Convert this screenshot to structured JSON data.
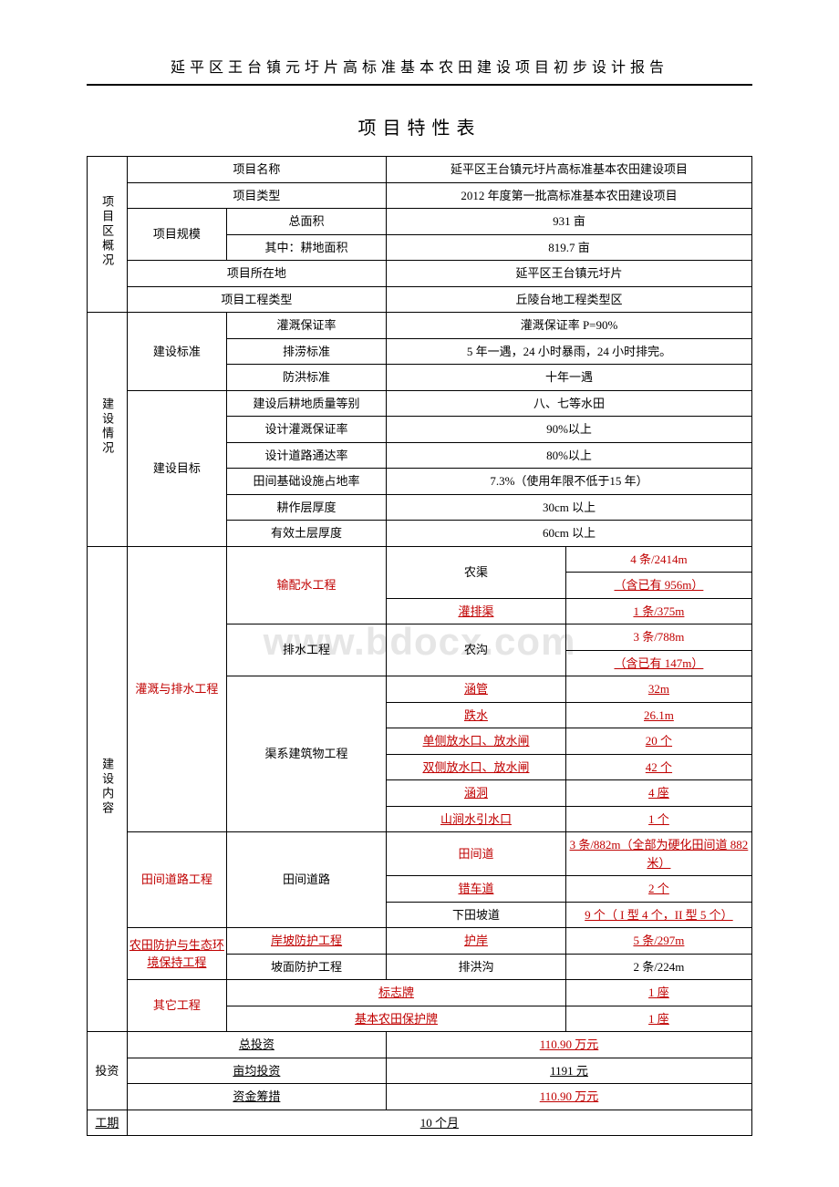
{
  "header": "延平区王台镇元圩片高标准基本农田建设项目初步设计报告",
  "title": "项目特性表",
  "watermark": "www.bdocx.com",
  "sections": {
    "overview": {
      "label": "项目区概况",
      "project_name_label": "项目名称",
      "project_name_value": "延平区王台镇元圩片高标准基本农田建设项目",
      "project_type_label": "项目类型",
      "project_type_value": "2012 年度第一批高标准基本农田建设项目",
      "project_scale_label": "项目规模",
      "total_area_label": "总面积",
      "total_area_value": "931 亩",
      "farmland_area_label": "其中：耕地面积",
      "farmland_area_value": "819.7 亩",
      "location_label": "项目所在地",
      "location_value": "延平区王台镇元圩片",
      "eng_type_label": "项目工程类型",
      "eng_type_value": "丘陵台地工程类型区"
    },
    "construction": {
      "label": "建设情况",
      "standard_label": "建设标准",
      "irrigation_rate_label": "灌溉保证率",
      "irrigation_rate_value": "灌溉保证率 P=90%",
      "drainage_std_label": "排涝标准",
      "drainage_std_value": "5 年一遇，24 小时暴雨，24 小时排完。",
      "flood_std_label": "防洪标准",
      "flood_std_value": "十年一遇",
      "goal_label": "建设目标",
      "quality_label": "建设后耕地质量等别",
      "quality_value": "八、七等水田",
      "design_irrigation_label": "设计灌溉保证率",
      "design_irrigation_value": "90%以上",
      "road_access_label": "设计道路通达率",
      "road_access_value": "80%以上",
      "field_infra_label": "田间基础设施占地率",
      "field_infra_value": "7.3%（使用年限不低于15 年）",
      "tillage_label": "耕作层厚度",
      "tillage_value": "30cm 以上",
      "soil_label": "有效土层厚度",
      "soil_value": "60cm 以上"
    },
    "content": {
      "label": "建设内容",
      "irrigation_drainage_label": "灌溉与排水工程",
      "water_supply_label": "输配水工程",
      "nongqu_label": "农渠",
      "nongqu_value_1": "4 条/2414m",
      "nongqu_value_2": "（含已有 956m）",
      "guanpaiju_label": "灌排渠",
      "guanpaiju_value": "1 条/375m",
      "drainage_eng_label": "排水工程",
      "nonggou_label": "农沟",
      "nonggou_value_1": "3 条/788m",
      "nonggou_value_2": "（含已有 147m）",
      "channel_struct_label": "渠系建筑物工程",
      "hangguan_label": "涵管",
      "hangguan_value": "32m",
      "dieshui_label": "跌水",
      "dieshui_value": "26.1m",
      "single_gate_label": "单侧放水口、放水闸",
      "single_gate_value": "20 个",
      "double_gate_label": "双侧放水口、放水闸",
      "double_gate_value": "42 个",
      "handong_label": "涵洞",
      "handong_value": "4 座",
      "shanjian_label": "山涧水引水口",
      "shanjian_value": "1 个",
      "field_road_label": "田间道路工程",
      "field_road_sub_label": "田间道路",
      "tianjiandao_label": "田间道",
      "tianjiandao_value": "3 条/882m（全部为硬化田间道 882 米）",
      "cuochedao_label": "错车道",
      "cuochedao_value": "2 个",
      "xiatian_label": "下田坡道",
      "xiatian_value": "9 个（ I 型 4 个，II 型 5 个）",
      "protection_label": "农田防护与生态环境保持工程",
      "slope_prot_label": "岸坡防护工程",
      "huan_label": "护岸",
      "huan_value": "5 条/297m",
      "surface_prot_label": "坡面防护工程",
      "paihonggou_label": "排洪沟",
      "paihonggou_value": "2 条/224m",
      "other_label": "其它工程",
      "sign_label": "标志牌",
      "sign_value": "1 座",
      "farmland_sign_label": "基本农田保护牌",
      "farmland_sign_value": "1 座"
    },
    "investment": {
      "label": "投资",
      "total_label": "总投资",
      "total_value": "110.90 万元",
      "per_mu_label": "亩均投资",
      "per_mu_value": "1191 元",
      "fund_label": "资金筹措",
      "fund_value": "110.90 万元"
    },
    "duration": {
      "label": "工期",
      "value": "10 个月"
    }
  }
}
